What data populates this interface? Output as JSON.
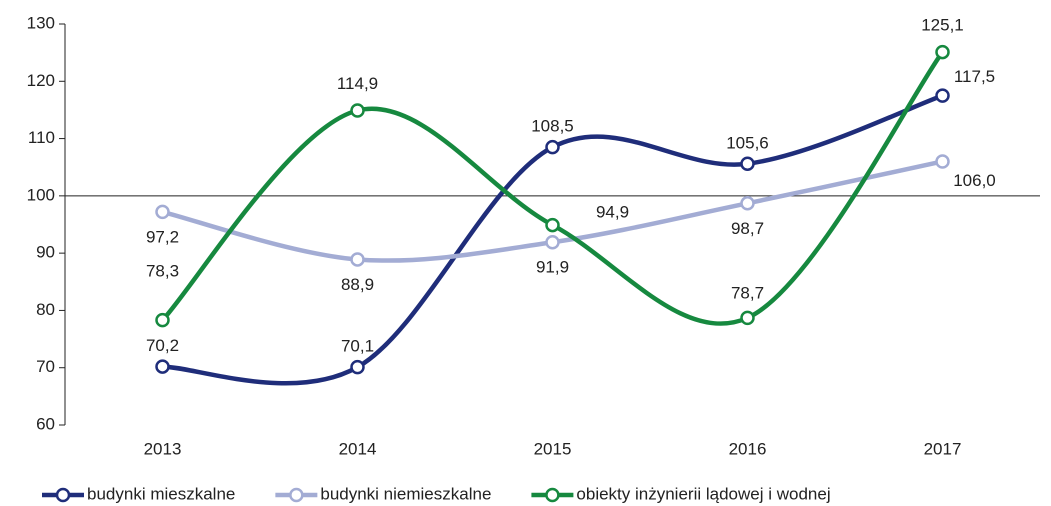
{
  "chart_data": {
    "type": "line",
    "categories": [
      "2013",
      "2014",
      "2015",
      "2016",
      "2017"
    ],
    "ylim": [
      60,
      130
    ],
    "yticks": [
      60,
      70,
      80,
      90,
      100,
      110,
      120,
      130
    ],
    "x_axis_at": 100,
    "smooth": true,
    "series": [
      {
        "name": "budynki mieszkalne",
        "color": "#1f2d7a",
        "values": [
          70.2,
          70.1,
          108.5,
          105.6,
          117.5
        ],
        "value_labels": [
          "70,2",
          "70,1",
          "108,5",
          "105,6",
          "117,5"
        ]
      },
      {
        "name": "budynki niemieszkalne",
        "color": "#a3acd4",
        "values": [
          97.2,
          88.9,
          91.9,
          98.7,
          106.0
        ],
        "value_labels": [
          "97,2",
          "88,9",
          "91,9",
          "98,7",
          "106,0"
        ]
      },
      {
        "name": "obiekty inżynierii lądowej i wodnej",
        "color": "#16893f",
        "values": [
          78.3,
          114.9,
          94.9,
          78.7,
          125.1
        ],
        "value_labels": [
          "78,3",
          "114,9",
          "94,9",
          "78,7",
          "125,1"
        ]
      }
    ]
  }
}
